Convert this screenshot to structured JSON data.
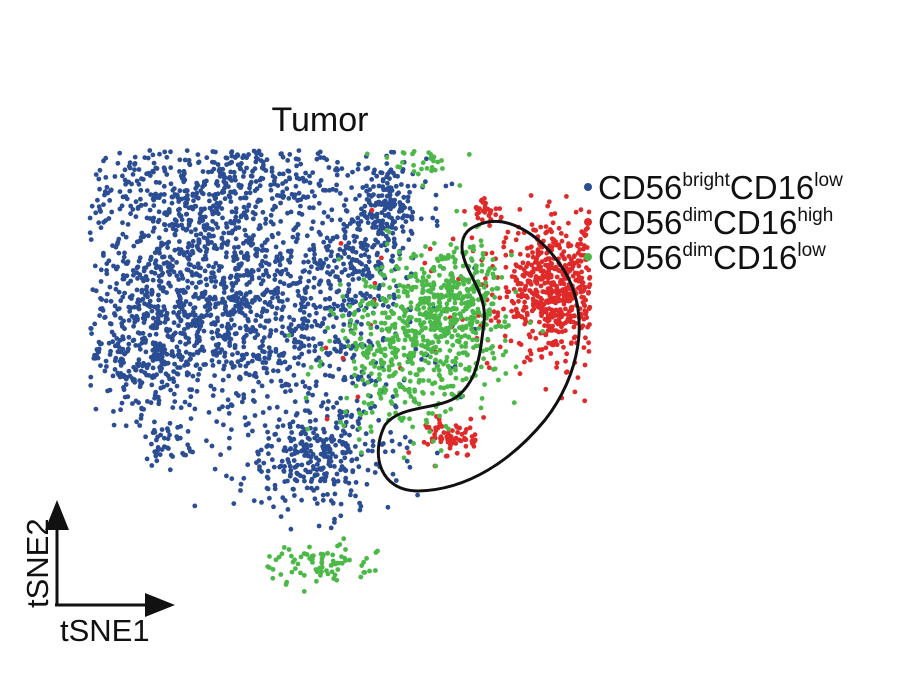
{
  "chart_data": {
    "type": "scatter",
    "title": "Tumor",
    "xlabel": "tSNE1",
    "ylabel": "tSNE2",
    "grid": false,
    "legend_position": "top-right",
    "series": [
      {
        "name": "CD56brightCD16low",
        "label_main": "CD56",
        "label_sup1": "bright",
        "label_mid": "CD16",
        "label_sup2": "low",
        "color": "#2a4d94",
        "clusters": [
          {
            "cx": -18,
            "cy": 26,
            "sx": 9,
            "sy": 6,
            "n": 700
          },
          {
            "cx": -26,
            "cy": 12,
            "sx": 8,
            "sy": 7,
            "n": 600
          },
          {
            "cx": -30,
            "cy": 0,
            "sx": 4,
            "sy": 4,
            "n": 200
          },
          {
            "cx": -14,
            "cy": 5,
            "sx": 9,
            "sy": 7,
            "n": 750
          },
          {
            "cx": -8,
            "cy": -14,
            "sx": 5,
            "sy": 4,
            "n": 320
          },
          {
            "cx": -27,
            "cy": -12,
            "sx": 1.5,
            "sy": 1.5,
            "n": 40
          },
          {
            "cx": 1,
            "cy": 22,
            "sx": 2.5,
            "sy": 3,
            "n": 160
          },
          {
            "cx": -3,
            "cy": 14,
            "sx": 3,
            "sy": 3,
            "n": 140
          }
        ]
      },
      {
        "name": "CD56dimCD16high",
        "label_main": "CD56",
        "label_sup1": "dim",
        "label_mid": "CD16",
        "label_sup2": "high",
        "color": "#e02a2a",
        "clusters": [
          {
            "cx": 22,
            "cy": 10,
            "sx": 3.5,
            "sy": 4.5,
            "n": 650
          },
          {
            "cx": 13,
            "cy": 21,
            "sx": 1,
            "sy": 1,
            "n": 30
          },
          {
            "cx": 9,
            "cy": -11,
            "sx": 1.5,
            "sy": 1.5,
            "n": 70
          },
          {
            "cx": 5,
            "cy": 8,
            "sx": 8,
            "sy": 9,
            "n": 30
          }
        ]
      },
      {
        "name": "CD56dimCD16low",
        "label_main": "CD56",
        "label_sup1": "dim",
        "label_mid": "CD16",
        "label_sup2": "low",
        "color": "#4bb848",
        "clusters": [
          {
            "cx": 4,
            "cy": 2,
            "sx": 5,
            "sy": 6,
            "n": 500
          },
          {
            "cx": 10,
            "cy": 9,
            "sx": 3,
            "sy": 4,
            "n": 280
          },
          {
            "cx": 5,
            "cy": 29,
            "sx": 2.5,
            "sy": 1.5,
            "n": 40
          },
          {
            "cx": -8,
            "cy": -29,
            "sx": 3.5,
            "sy": 1.5,
            "n": 80
          }
        ]
      }
    ],
    "xlim": [
      -40,
      35
    ],
    "ylim": [
      -40,
      40
    ]
  }
}
